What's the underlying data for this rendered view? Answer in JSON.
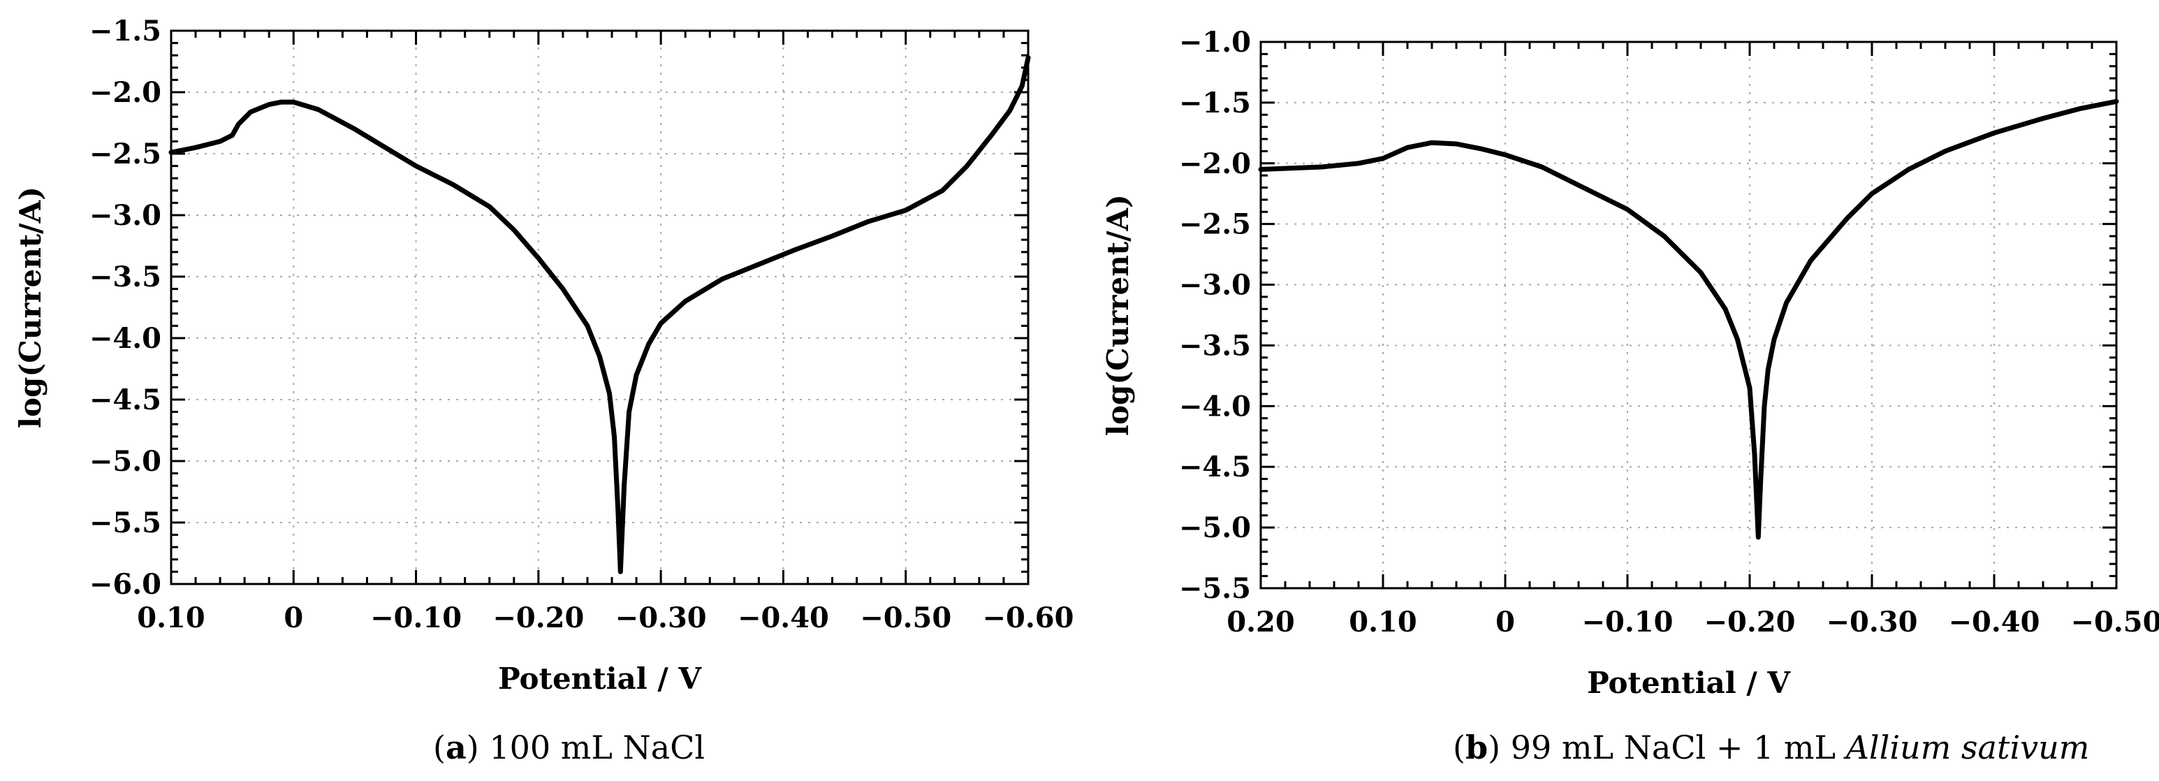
{
  "chart_data": [
    {
      "type": "line",
      "panel": "a",
      "caption": {
        "letter": "a",
        "text": " 100 mL NaCl",
        "italic": ""
      },
      "xlabel": "Potential / V",
      "ylabel": "log(Current/A)",
      "xlim": [
        0.1,
        -0.6
      ],
      "ylim": [
        -6.0,
        -1.5
      ],
      "xticks": [
        0.1,
        0,
        -0.1,
        -0.2,
        -0.3,
        -0.4,
        -0.5,
        -0.6
      ],
      "xtick_labels": [
        "0.10",
        "0",
        "−0.10",
        "−0.20",
        "−0.30",
        "−0.40",
        "−0.50",
        "−0.60"
      ],
      "yticks": [
        -1.5,
        -2.0,
        -2.5,
        -3.0,
        -3.5,
        -4.0,
        -4.5,
        -5.0,
        -5.5,
        -6.0
      ],
      "ytick_labels": [
        "−1.5",
        "−2.0",
        "−2.5",
        "−3.0",
        "−3.5",
        "−4.0",
        "−4.5",
        "−5.0",
        "−5.5",
        "−6.0"
      ],
      "grid": true,
      "x": [
        0.1,
        0.08,
        0.06,
        0.05,
        0.045,
        0.035,
        0.02,
        0.01,
        0.0,
        -0.02,
        -0.05,
        -0.08,
        -0.1,
        -0.13,
        -0.16,
        -0.18,
        -0.2,
        -0.22,
        -0.24,
        -0.25,
        -0.258,
        -0.262,
        -0.265,
        -0.267,
        -0.27,
        -0.274,
        -0.28,
        -0.29,
        -0.3,
        -0.32,
        -0.35,
        -0.38,
        -0.41,
        -0.44,
        -0.47,
        -0.5,
        -0.53,
        -0.55,
        -0.57,
        -0.585,
        -0.595,
        -0.6
      ],
      "y": [
        -2.49,
        -2.45,
        -2.4,
        -2.35,
        -2.26,
        -2.16,
        -2.1,
        -2.08,
        -2.08,
        -2.14,
        -2.3,
        -2.48,
        -2.6,
        -2.75,
        -2.93,
        -3.12,
        -3.35,
        -3.6,
        -3.9,
        -4.15,
        -4.45,
        -4.8,
        -5.4,
        -5.9,
        -5.2,
        -4.6,
        -4.3,
        -4.05,
        -3.88,
        -3.7,
        -3.52,
        -3.4,
        -3.28,
        -3.17,
        -3.05,
        -2.96,
        -2.8,
        -2.6,
        -2.35,
        -2.15,
        -1.95,
        -1.72
      ]
    },
    {
      "type": "line",
      "panel": "b",
      "caption": {
        "letter": "b",
        "text": " 99 mL NaCl + 1 mL ",
        "italic": "Allium sativum"
      },
      "xlabel": "Potential / V",
      "ylabel": "log(Current/A)",
      "xlim": [
        0.2,
        -0.5
      ],
      "ylim": [
        -5.5,
        -1.0
      ],
      "xticks": [
        0.2,
        0.1,
        0,
        -0.1,
        -0.2,
        -0.3,
        -0.4,
        -0.5
      ],
      "xtick_labels": [
        "0.20",
        "0.10",
        "0",
        "−0.10",
        "−0.20",
        "−0.30",
        "−0.40",
        "−0.50"
      ],
      "yticks": [
        -1.0,
        -1.5,
        -2.0,
        -2.5,
        -3.0,
        -3.5,
        -4.0,
        -4.5,
        -5.0,
        -5.5
      ],
      "ytick_labels": [
        "−1.0",
        "−1.5",
        "−2.0",
        "−2.5",
        "−3.0",
        "−3.5",
        "−4.0",
        "−4.5",
        "−5.0",
        "−5.5"
      ],
      "grid": true,
      "x": [
        0.2,
        0.15,
        0.12,
        0.1,
        0.08,
        0.06,
        0.04,
        0.02,
        0.0,
        -0.03,
        -0.06,
        -0.1,
        -0.13,
        -0.16,
        -0.18,
        -0.19,
        -0.2,
        -0.204,
        -0.207,
        -0.209,
        -0.212,
        -0.215,
        -0.22,
        -0.23,
        -0.25,
        -0.28,
        -0.3,
        -0.33,
        -0.36,
        -0.4,
        -0.44,
        -0.47,
        -0.5
      ],
      "y": [
        -2.05,
        -2.03,
        -2.0,
        -1.96,
        -1.87,
        -1.83,
        -1.84,
        -1.88,
        -1.93,
        -2.03,
        -2.18,
        -2.38,
        -2.6,
        -2.9,
        -3.2,
        -3.45,
        -3.85,
        -4.4,
        -5.08,
        -4.6,
        -4.0,
        -3.7,
        -3.45,
        -3.15,
        -2.8,
        -2.45,
        -2.25,
        -2.05,
        -1.9,
        -1.75,
        -1.63,
        -1.55,
        -1.49
      ]
    }
  ]
}
